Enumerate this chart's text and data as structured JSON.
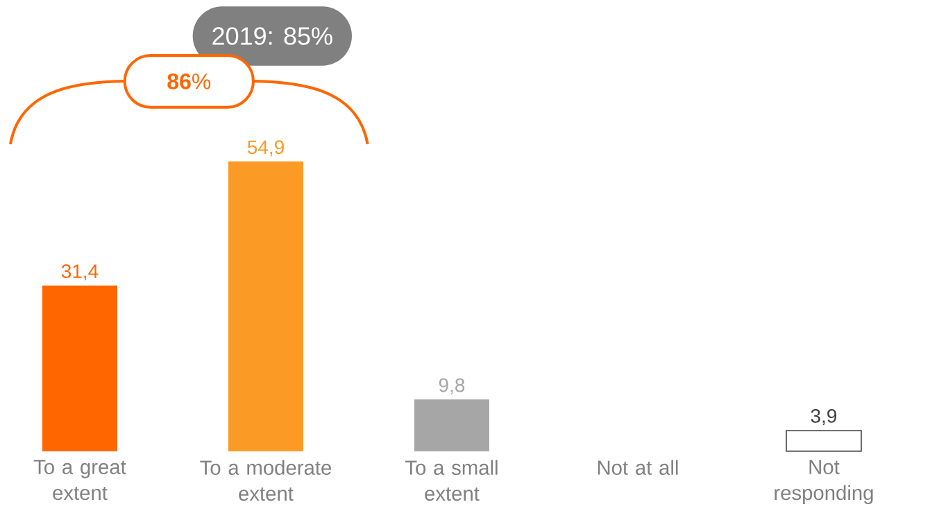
{
  "chart_data": {
    "type": "bar",
    "categories": [
      "To a great extent",
      "To a moderate extent",
      "To a small extent",
      "Not at all",
      "Not responding"
    ],
    "values": [
      31.4,
      54.9,
      9.8,
      null,
      3.9
    ],
    "value_labels": [
      "31,4",
      "54,9",
      "9,8",
      null,
      "3,9"
    ],
    "colors": [
      "#ff6600",
      "#fb9a24",
      "#a6a6a6",
      null,
      "#ffffff"
    ],
    "tick_labels": "x",
    "annotations": [
      "2019: 85%",
      "**86**%"
    ]
  }
}
